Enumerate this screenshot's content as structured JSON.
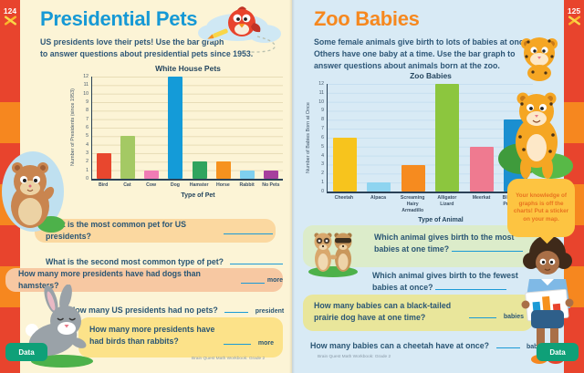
{
  "left_page": {
    "page_number": "124",
    "title": "Presidential Pets",
    "intro": [
      "US presidents love their pets! Use the bar graph",
      "to answer questions about presidential pets since 1953."
    ],
    "questions": {
      "q1": {
        "text": "What is the most common pet for US presidents?"
      },
      "q2": {
        "text": "What is the second most common type of pet?"
      },
      "q3": {
        "text": "How many more presidents have had dogs than hamsters?",
        "suffix": "more"
      },
      "q4": {
        "text": "How many US presidents had no pets?",
        "suffix": "president"
      },
      "q5": {
        "line1": "How many more presidents have",
        "line2": "had birds than rabbits?",
        "suffix": "more"
      }
    },
    "footer": "Brain Quest Math Workbook: Grade 2",
    "badge": "Data"
  },
  "right_page": {
    "page_number": "125",
    "title": "Zoo Babies",
    "intro": [
      "Some female animals give birth to lots of babies at once.",
      "Others have one baby at a time. Use the bar graph to",
      "answer questions about animals born at the zoo."
    ],
    "questions": {
      "q1": {
        "line1": "Which animal gives birth to the most",
        "line2": "babies at one time?"
      },
      "q2": {
        "line1": "Which animal gives birth to the fewest",
        "line2": "babies at once?"
      },
      "q3": {
        "line1": "How many babies can a black-tailed",
        "line2": "prairie dog have at one time?",
        "suffix": "babies"
      },
      "q4": {
        "text": "How many babies can a cheetah have at once?",
        "suffix": "babies"
      }
    },
    "sticker_bubble": "Your knowledge of graphs is off the charts! Put a sticker on your map.",
    "footer": "Brain Quest Math Workbook: Grade 2",
    "badge": "Data"
  },
  "chart_data": [
    {
      "type": "bar",
      "title": "White House Pets",
      "categories": [
        "Bird",
        "Cat",
        "Cow",
        "Dog",
        "Hamster",
        "Horse",
        "Rabbit",
        "No Pets"
      ],
      "values": [
        3,
        5,
        1,
        12,
        2,
        2,
        1,
        1
      ],
      "colors": [
        "#e8472e",
        "#a4c964",
        "#f07cb5",
        "#149bd8",
        "#2fa45e",
        "#f6921e",
        "#7fd0ef",
        "#a63f9d"
      ],
      "xlabel": "Type of Pet",
      "ylabel": "Number of Presidents (since 1953)",
      "ylim": [
        0,
        12
      ],
      "grid": true,
      "legend": false
    },
    {
      "type": "bar",
      "title": "Zoo Babies",
      "categories": [
        "Cheetah",
        "Alpaca",
        "Screaming\nHairy Armadillo",
        "Alligator\nLizard",
        "Meerkat",
        "Black-tailed\nPrairie Dog"
      ],
      "values": [
        6,
        1,
        3,
        12,
        5,
        8
      ],
      "colors": [
        "#f7c41d",
        "#8ed4f0",
        "#f68b1f",
        "#8cc63e",
        "#ef7a90",
        "#1b8fd0"
      ],
      "xlabel": "Type of Animal",
      "ylabel": "Number of Babies Born at Once",
      "ylim": [
        0,
        12
      ],
      "grid": true,
      "legend": false
    }
  ]
}
